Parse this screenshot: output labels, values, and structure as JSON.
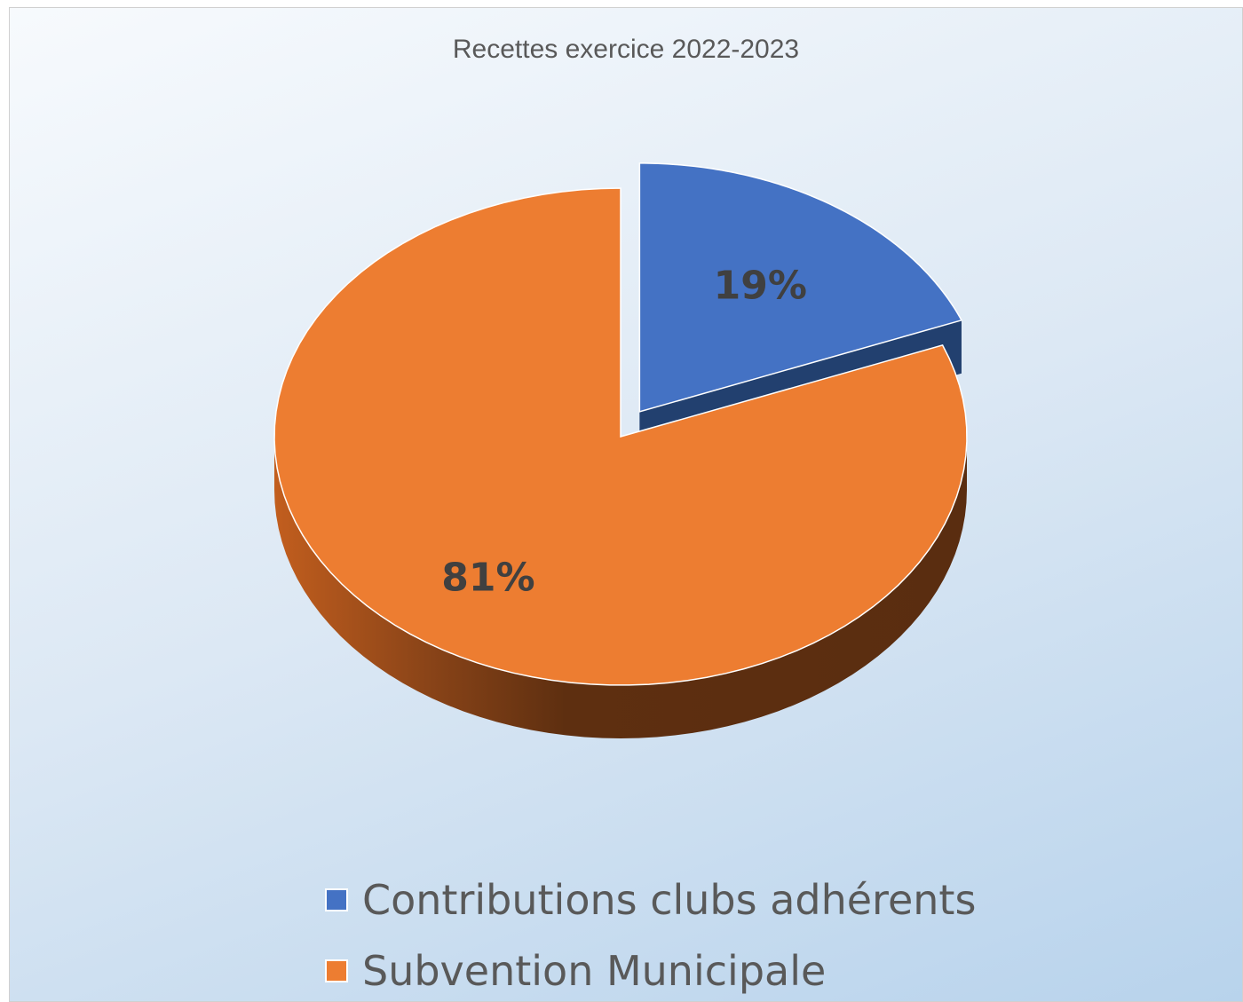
{
  "chart_data": {
    "type": "pie",
    "title": "Recettes exercice 2022-2023",
    "categories": [
      "Contributions clubs adhérents",
      "Subvention Municipale"
    ],
    "values": [
      19,
      81
    ],
    "labels": [
      "19%",
      "81%"
    ],
    "exploded": [
      true,
      false
    ],
    "legend_position": "bottom",
    "colors": {
      "slice_top": [
        "#4472c4",
        "#ed7d31"
      ],
      "slice_side": [
        "#22406f",
        "#7a3b14"
      ]
    }
  }
}
